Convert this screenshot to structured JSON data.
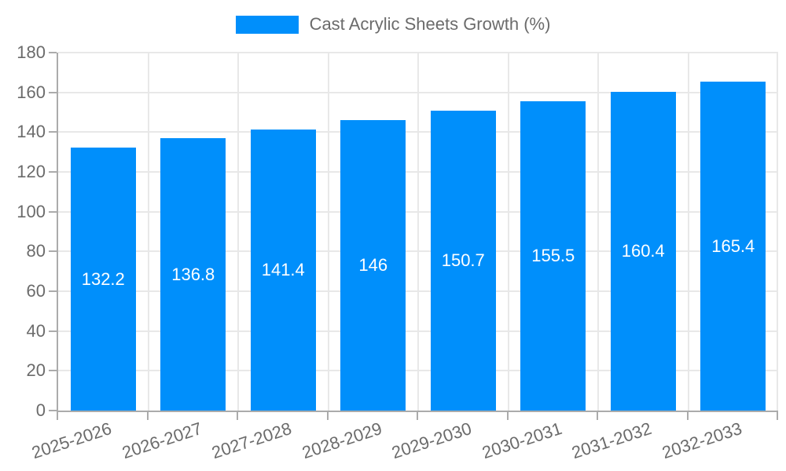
{
  "chart_data": {
    "type": "bar",
    "title": "",
    "legend": {
      "label": "Cast Acrylic Sheets Growth (%)",
      "position": "top-center"
    },
    "categories": [
      "2025-2026",
      "2026-2027",
      "2027-2028",
      "2028-2029",
      "2029-2030",
      "2030-2031",
      "2031-2032",
      "2032-2033"
    ],
    "values": [
      132.2,
      136.8,
      141.4,
      146,
      150.7,
      155.5,
      160.4,
      165.4
    ],
    "bar_labels": [
      "132.2",
      "136.8",
      "141.4",
      "146",
      "150.7",
      "155.5",
      "160.4",
      "165.4"
    ],
    "xlabel": "",
    "ylabel": "",
    "ylim": [
      0,
      180
    ],
    "ytick_step": 20,
    "ytick_labels": [
      "0",
      "20",
      "40",
      "60",
      "80",
      "100",
      "120",
      "140",
      "160",
      "180"
    ],
    "grid": true,
    "colors": {
      "bar": "#008FFB",
      "bar_label": "#ffffff",
      "axis_text": "#6b6b6b",
      "gridline": "#e8e8e8",
      "axis_line": "#ababab",
      "background": "#ffffff"
    }
  }
}
